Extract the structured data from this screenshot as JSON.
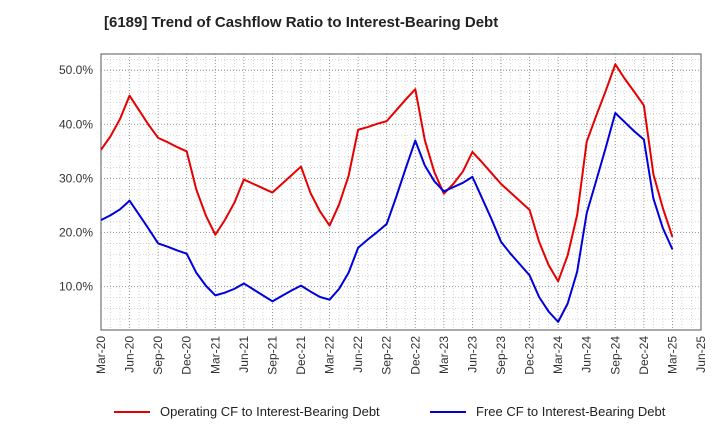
{
  "title": "[6189]  Trend of Cashflow Ratio to Interest-Bearing Debt",
  "chart_data": {
    "type": "line",
    "title": "[6189]  Trend of Cashflow Ratio to Interest-Bearing Debt",
    "xlabel": "",
    "ylabel": "",
    "x_ticks": [
      "Mar-20",
      "Jun-20",
      "Sep-20",
      "Dec-20",
      "Mar-21",
      "Jun-21",
      "Sep-21",
      "Dec-21",
      "Mar-22",
      "Jun-22",
      "Sep-22",
      "Dec-22",
      "Mar-23",
      "Jun-23",
      "Sep-23",
      "Dec-23",
      "Mar-24",
      "Jun-24",
      "Sep-24",
      "Dec-24",
      "Mar-25",
      "Jun-25"
    ],
    "y_ticks": [
      "10.0%",
      "20.0%",
      "30.0%",
      "40.0%",
      "50.0%"
    ],
    "ylim": [
      2,
      53
    ],
    "y_tick_values": [
      10,
      20,
      30,
      40,
      50
    ],
    "grid": true,
    "legend_position": "bottom",
    "series": [
      {
        "name": "Operating CF to Interest-Bearing Debt",
        "color": "#e60000",
        "x": [
          "Mar-20",
          "Apr-20",
          "May-20",
          "Jun-20",
          "Jul-20",
          "Aug-20",
          "Sep-20",
          "Oct-20",
          "Nov-20",
          "Dec-20",
          "Jan-21",
          "Feb-21",
          "Mar-21",
          "Apr-21",
          "May-21",
          "Jun-21",
          "Jul-21",
          "Aug-21",
          "Sep-21",
          "Oct-21",
          "Nov-21",
          "Dec-21",
          "Jan-22",
          "Feb-22",
          "Mar-22",
          "Apr-22",
          "May-22",
          "Jun-22",
          "Jul-22",
          "Aug-22",
          "Sep-22",
          "Oct-22",
          "Nov-22",
          "Dec-22",
          "Jan-23",
          "Feb-23",
          "Mar-23",
          "Apr-23",
          "May-23",
          "Jun-23",
          "Jul-23",
          "Aug-23",
          "Sep-23",
          "Oct-23",
          "Nov-23",
          "Dec-23",
          "Jan-24",
          "Feb-24",
          "Mar-24",
          "Apr-24",
          "May-24",
          "Jun-24",
          "Jul-24",
          "Aug-24",
          "Sep-24",
          "Oct-24",
          "Nov-24",
          "Dec-24",
          "Jan-25",
          "Feb-25",
          "Mar-25"
        ],
        "values": [
          35.3,
          37.8,
          41.0,
          45.3,
          42.6,
          39.9,
          37.5,
          36.7,
          35.8,
          35.0,
          28.0,
          23.2,
          19.6,
          22.3,
          25.5,
          29.8,
          29.0,
          28.2,
          27.4,
          29.0,
          30.6,
          32.2,
          27.3,
          23.9,
          21.3,
          25.2,
          30.5,
          39.0,
          39.5,
          40.1,
          40.6,
          42.6,
          44.6,
          46.5,
          37.1,
          31.2,
          27.2,
          29.0,
          31.3,
          34.9,
          33.0,
          31.0,
          29.0,
          27.4,
          25.8,
          24.2,
          18.3,
          14.0,
          11.0,
          15.8,
          23.3,
          36.8,
          41.6,
          46.2,
          51.1,
          48.4,
          46.0,
          43.5,
          30.8,
          24.5,
          19.2
        ]
      },
      {
        "name": "Free CF to Interest-Bearing Debt",
        "color": "#0000dd",
        "x": [
          "Mar-20",
          "Apr-20",
          "May-20",
          "Jun-20",
          "Jul-20",
          "Aug-20",
          "Sep-20",
          "Oct-20",
          "Nov-20",
          "Dec-20",
          "Jan-21",
          "Feb-21",
          "Mar-21",
          "Apr-21",
          "May-21",
          "Jun-21",
          "Jul-21",
          "Aug-21",
          "Sep-21",
          "Oct-21",
          "Nov-21",
          "Dec-21",
          "Jan-22",
          "Feb-22",
          "Mar-22",
          "Apr-22",
          "May-22",
          "Jun-22",
          "Jul-22",
          "Aug-22",
          "Sep-22",
          "Oct-22",
          "Nov-22",
          "Dec-22",
          "Jan-23",
          "Feb-23",
          "Mar-23",
          "Apr-23",
          "May-23",
          "Jun-23",
          "Jul-23",
          "Aug-23",
          "Sep-23",
          "Oct-23",
          "Nov-23",
          "Dec-23",
          "Jan-24",
          "Feb-24",
          "Mar-24",
          "Apr-24",
          "May-24",
          "Jun-24",
          "Jul-24",
          "Aug-24",
          "Sep-24",
          "Oct-24",
          "Nov-24",
          "Dec-24",
          "Jan-25",
          "Feb-25",
          "Mar-25"
        ],
        "values": [
          22.3,
          23.2,
          24.3,
          25.9,
          23.3,
          20.7,
          18.0,
          17.4,
          16.7,
          16.1,
          12.6,
          10.2,
          8.4,
          8.9,
          9.6,
          10.6,
          9.5,
          8.4,
          7.3,
          8.3,
          9.3,
          10.2,
          9.1,
          8.1,
          7.6,
          9.6,
          12.6,
          17.2,
          18.7,
          20.1,
          21.6,
          26.6,
          31.9,
          37.0,
          32.4,
          29.5,
          27.6,
          28.4,
          29.2,
          30.3,
          26.4,
          22.5,
          18.3,
          16.1,
          14.1,
          12.1,
          8.1,
          5.4,
          3.5,
          6.9,
          12.8,
          23.6,
          29.6,
          35.7,
          42.1,
          40.4,
          38.7,
          37.2,
          26.3,
          20.8,
          16.9
        ]
      }
    ]
  }
}
